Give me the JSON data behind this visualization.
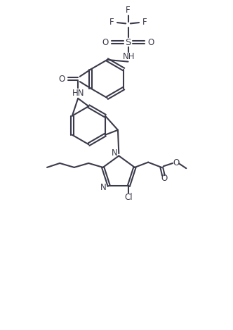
{
  "background_color": "#ffffff",
  "line_color": "#3a3a4a",
  "text_color": "#3a3a4a",
  "line_width": 1.5,
  "font_size": 8.5,
  "fig_width": 3.32,
  "fig_height": 4.69,
  "dpi": 100,
  "xlim": [
    0,
    10
  ],
  "ylim": [
    0,
    14.15
  ]
}
